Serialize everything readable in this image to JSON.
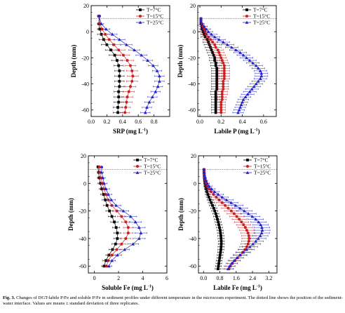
{
  "caption": {
    "label": "Fig. 3.",
    "text": "Changes of DGT-labile P/Fe and soluble P/Fe in sediment profiles under different temperature in the microcosm experiment. The dotted line shows the position of the sediment-water interface. Values are means ± standard deviation of three replicates."
  },
  "colors": {
    "t7": "#000000",
    "t15": "#cc1f1f",
    "t25": "#2222cc"
  },
  "chart_data": [
    {
      "type": "line",
      "xlabel": "SRP (mg L",
      "xlabel_sup": "-1",
      "xlabel_tail": ")",
      "ylabel": "Depth (mm)",
      "xlim": [
        0.0,
        1.0
      ],
      "xticks": [
        "0.0",
        "0.2",
        "0.4",
        "0.6",
        "0.8"
      ],
      "ylim": [
        -65,
        20
      ],
      "yticks": [
        "20",
        "0",
        "-20",
        "-40",
        "-60"
      ],
      "swi": 10,
      "legend": "top-right",
      "depth": [
        12,
        6,
        2,
        -2,
        -6,
        -10,
        -14,
        -18,
        -22,
        -26,
        -30,
        -34,
        -38,
        -42,
        -46,
        -50,
        -54,
        -58,
        -62
      ],
      "series": [
        {
          "name": "T=7°C",
          "marker": "square",
          "color": "t7",
          "values": [
            0.1,
            0.1,
            0.11,
            0.13,
            0.16,
            0.2,
            0.25,
            0.3,
            0.33,
            0.35,
            0.36,
            0.36,
            0.36,
            0.36,
            0.35,
            0.35,
            0.35,
            0.34,
            0.34
          ],
          "err": [
            0.02,
            0.02,
            0.03,
            0.05,
            0.06,
            0.07,
            0.07,
            0.07,
            0.07,
            0.06,
            0.06,
            0.06,
            0.06,
            0.06,
            0.06,
            0.06,
            0.06,
            0.06,
            0.06
          ]
        },
        {
          "name": "T=15°C",
          "marker": "circle",
          "color": "t15",
          "values": [
            0.1,
            0.11,
            0.14,
            0.18,
            0.23,
            0.29,
            0.35,
            0.41,
            0.46,
            0.5,
            0.52,
            0.53,
            0.52,
            0.5,
            0.48,
            0.46,
            0.45,
            0.44,
            0.43
          ],
          "err": [
            0.02,
            0.02,
            0.05,
            0.06,
            0.07,
            0.08,
            0.08,
            0.08,
            0.08,
            0.07,
            0.07,
            0.07,
            0.07,
            0.07,
            0.07,
            0.07,
            0.07,
            0.06,
            0.06
          ]
        },
        {
          "name": "T=25°C",
          "marker": "triangle",
          "color": "t25",
          "values": [
            0.1,
            0.13,
            0.19,
            0.27,
            0.36,
            0.45,
            0.55,
            0.64,
            0.72,
            0.79,
            0.84,
            0.87,
            0.87,
            0.85,
            0.82,
            0.78,
            0.74,
            0.71,
            0.69
          ],
          "err": [
            0.02,
            0.03,
            0.05,
            0.06,
            0.07,
            0.07,
            0.07,
            0.07,
            0.06,
            0.06,
            0.06,
            0.06,
            0.06,
            0.06,
            0.06,
            0.06,
            0.06,
            0.06,
            0.06
          ]
        }
      ]
    },
    {
      "type": "line",
      "xlabel": "Labile P (mg L",
      "xlabel_sup": "-1",
      "xlabel_tail": ")",
      "ylabel": "Depth (mm)",
      "xlim": [
        -0.02,
        0.72
      ],
      "xticks": [
        "0.0",
        "0.2",
        "0.4",
        "0.6"
      ],
      "ylim": [
        -65,
        20
      ],
      "yticks": [
        "20",
        "0",
        "-20",
        "-40",
        "-60"
      ],
      "swi": 10,
      "legend": "top-right",
      "depth": [
        10,
        8,
        6,
        4,
        2,
        0,
        -2,
        -4,
        -6,
        -8,
        -10,
        -12,
        -14,
        -16,
        -18,
        -20,
        -22,
        -24,
        -26,
        -28,
        -30,
        -32,
        -34,
        -36,
        -38,
        -40,
        -42,
        -44,
        -46,
        -48,
        -50,
        -52,
        -54,
        -56,
        -58,
        -60,
        -62
      ],
      "series": [
        {
          "name": "T=7°C",
          "marker": "square",
          "color": "t7",
          "values": [
            0.01,
            0.01,
            0.01,
            0.02,
            0.02,
            0.03,
            0.04,
            0.05,
            0.07,
            0.08,
            0.09,
            0.1,
            0.11,
            0.12,
            0.13,
            0.14,
            0.14,
            0.15,
            0.15,
            0.16,
            0.16,
            0.16,
            0.16,
            0.16,
            0.16,
            0.16,
            0.16,
            0.16,
            0.15,
            0.15,
            0.15,
            0.15,
            0.15,
            0.15,
            0.15,
            0.15,
            0.15
          ],
          "err": [
            0.01,
            0.01,
            0.01,
            0.02,
            0.02,
            0.03,
            0.03,
            0.04,
            0.04,
            0.05,
            0.05,
            0.05,
            0.05,
            0.05,
            0.05,
            0.05,
            0.05,
            0.05,
            0.05,
            0.05,
            0.05,
            0.05,
            0.05,
            0.05,
            0.05,
            0.05,
            0.05,
            0.05,
            0.05,
            0.05,
            0.04,
            0.04,
            0.04,
            0.04,
            0.04,
            0.04,
            0.04
          ]
        },
        {
          "name": "T=15°C",
          "marker": "circle",
          "color": "t15",
          "values": [
            0.01,
            0.01,
            0.02,
            0.03,
            0.04,
            0.05,
            0.06,
            0.08,
            0.1,
            0.12,
            0.14,
            0.15,
            0.17,
            0.18,
            0.19,
            0.2,
            0.21,
            0.22,
            0.23,
            0.23,
            0.23,
            0.23,
            0.23,
            0.23,
            0.22,
            0.22,
            0.22,
            0.22,
            0.21,
            0.21,
            0.21,
            0.21,
            0.2,
            0.2,
            0.2,
            0.2,
            0.2
          ],
          "err": [
            0.01,
            0.01,
            0.02,
            0.02,
            0.03,
            0.03,
            0.04,
            0.04,
            0.05,
            0.05,
            0.05,
            0.05,
            0.05,
            0.05,
            0.05,
            0.05,
            0.05,
            0.05,
            0.05,
            0.05,
            0.05,
            0.05,
            0.05,
            0.05,
            0.05,
            0.05,
            0.05,
            0.05,
            0.05,
            0.05,
            0.04,
            0.04,
            0.04,
            0.04,
            0.04,
            0.04,
            0.04
          ]
        },
        {
          "name": "T=25°C",
          "marker": "triangle",
          "color": "t25",
          "values": [
            0.01,
            0.01,
            0.02,
            0.04,
            0.06,
            0.08,
            0.11,
            0.14,
            0.18,
            0.22,
            0.26,
            0.3,
            0.34,
            0.38,
            0.41,
            0.44,
            0.47,
            0.5,
            0.53,
            0.55,
            0.57,
            0.58,
            0.58,
            0.57,
            0.55,
            0.53,
            0.51,
            0.49,
            0.47,
            0.45,
            0.43,
            0.41,
            0.4,
            0.39,
            0.38,
            0.37,
            0.36
          ],
          "err": [
            0.01,
            0.01,
            0.02,
            0.03,
            0.04,
            0.04,
            0.05,
            0.05,
            0.06,
            0.06,
            0.06,
            0.06,
            0.06,
            0.06,
            0.06,
            0.06,
            0.06,
            0.06,
            0.06,
            0.06,
            0.06,
            0.06,
            0.06,
            0.06,
            0.06,
            0.06,
            0.06,
            0.06,
            0.06,
            0.06,
            0.05,
            0.05,
            0.05,
            0.05,
            0.05,
            0.05,
            0.05
          ]
        }
      ]
    },
    {
      "type": "line",
      "xlabel": "Soluble Fe (mg L",
      "xlabel_sup": "-1",
      "xlabel_tail": ")",
      "ylabel": "Depth (mm)",
      "xlim": [
        -0.5,
        6.0
      ],
      "xticks": [
        "0",
        "2",
        "4",
        "6"
      ],
      "ylim": [
        -65,
        20
      ],
      "yticks": [
        "20",
        "0",
        "-20",
        "-40",
        "-60"
      ],
      "swi": 10,
      "legend": "top-right",
      "depth": [
        12,
        8,
        4,
        0,
        -4,
        -8,
        -12,
        -16,
        -20,
        -24,
        -28,
        -32,
        -36,
        -40,
        -44,
        -48,
        -52,
        -56,
        -60
      ],
      "series": [
        {
          "name": "T=7°C",
          "marker": "square",
          "color": "t7",
          "values": [
            0.3,
            0.35,
            0.4,
            0.5,
            0.6,
            0.75,
            0.9,
            1.05,
            1.25,
            1.45,
            1.65,
            1.8,
            1.9,
            1.9,
            1.75,
            1.5,
            1.2,
            0.95,
            0.8
          ],
          "err": [
            0.1,
            0.1,
            0.15,
            0.2,
            0.2,
            0.25,
            0.25,
            0.3,
            0.3,
            0.3,
            0.3,
            0.3,
            0.3,
            0.3,
            0.3,
            0.3,
            0.25,
            0.25,
            0.2
          ]
        },
        {
          "name": "T=15°C",
          "marker": "circle",
          "color": "t15",
          "values": [
            0.4,
            0.45,
            0.55,
            0.65,
            0.8,
            0.95,
            1.15,
            1.45,
            1.85,
            2.25,
            2.6,
            2.8,
            2.8,
            2.6,
            2.25,
            1.85,
            1.45,
            1.15,
            1.0
          ],
          "err": [
            0.1,
            0.15,
            0.2,
            0.2,
            0.25,
            0.25,
            0.3,
            0.3,
            0.35,
            0.35,
            0.35,
            0.4,
            0.4,
            0.4,
            0.35,
            0.35,
            0.3,
            0.3,
            0.25
          ]
        },
        {
          "name": "T=25°C",
          "marker": "triangle",
          "color": "t25",
          "values": [
            0.6,
            0.6,
            0.7,
            0.8,
            0.95,
            1.15,
            1.4,
            1.8,
            2.4,
            3.0,
            3.4,
            3.7,
            3.85,
            3.7,
            3.2,
            2.5,
            1.9,
            1.45,
            1.2
          ],
          "err": [
            0.1,
            0.15,
            0.2,
            0.25,
            0.3,
            0.3,
            0.35,
            0.4,
            0.45,
            0.5,
            0.5,
            0.5,
            0.5,
            0.5,
            0.45,
            0.4,
            0.35,
            0.3,
            0.25
          ]
        }
      ]
    },
    {
      "type": "line",
      "xlabel": "Labile Fe (mg L",
      "xlabel_sup": "-1",
      "xlabel_tail": ")",
      "ylabel": "Depth (mm)",
      "xlim": [
        -0.25,
        3.6
      ],
      "xticks": [
        "0.0",
        "0.8",
        "1.6",
        "2.4",
        "3.2"
      ],
      "ylim": [
        -65,
        20
      ],
      "yticks": [
        "20",
        "0",
        "-20",
        "-40",
        "-60"
      ],
      "swi": 10,
      "legend": "top-right",
      "depth": [
        10,
        8,
        6,
        4,
        2,
        0,
        -2,
        -4,
        -6,
        -8,
        -10,
        -12,
        -14,
        -16,
        -18,
        -20,
        -22,
        -24,
        -26,
        -28,
        -30,
        -32,
        -34,
        -36,
        -38,
        -40,
        -42,
        -44,
        -46,
        -48,
        -50,
        -52,
        -54,
        -56,
        -58,
        -60,
        -62
      ],
      "series": [
        {
          "name": "T=7°C",
          "marker": "square",
          "color": "t7",
          "values": [
            0.02,
            0.02,
            0.03,
            0.04,
            0.05,
            0.07,
            0.1,
            0.13,
            0.17,
            0.21,
            0.26,
            0.32,
            0.38,
            0.44,
            0.5,
            0.55,
            0.6,
            0.64,
            0.68,
            0.72,
            0.75,
            0.78,
            0.81,
            0.83,
            0.85,
            0.86,
            0.87,
            0.87,
            0.86,
            0.85,
            0.83,
            0.81,
            0.79,
            0.77,
            0.75,
            0.73,
            0.71
          ],
          "err": [
            0.02,
            0.02,
            0.03,
            0.04,
            0.05,
            0.06,
            0.08,
            0.09,
            0.1,
            0.12,
            0.13,
            0.14,
            0.15,
            0.15,
            0.15,
            0.15,
            0.15,
            0.15,
            0.15,
            0.15,
            0.15,
            0.15,
            0.15,
            0.15,
            0.15,
            0.15,
            0.15,
            0.15,
            0.15,
            0.15,
            0.14,
            0.14,
            0.14,
            0.14,
            0.14,
            0.14,
            0.14
          ]
        },
        {
          "name": "T=15°C",
          "marker": "circle",
          "color": "t15",
          "values": [
            0.03,
            0.03,
            0.04,
            0.06,
            0.09,
            0.13,
            0.19,
            0.27,
            0.37,
            0.49,
            0.62,
            0.76,
            0.91,
            1.06,
            1.21,
            1.36,
            1.5,
            1.63,
            1.75,
            1.86,
            1.96,
            2.05,
            2.12,
            2.18,
            2.22,
            2.23,
            2.22,
            2.18,
            2.12,
            2.03,
            1.92,
            1.8,
            1.67,
            1.54,
            1.42,
            1.32,
            1.25
          ],
          "err": [
            0.02,
            0.02,
            0.03,
            0.05,
            0.07,
            0.09,
            0.12,
            0.15,
            0.18,
            0.21,
            0.24,
            0.27,
            0.3,
            0.32,
            0.33,
            0.34,
            0.35,
            0.35,
            0.35,
            0.35,
            0.35,
            0.35,
            0.35,
            0.35,
            0.35,
            0.35,
            0.35,
            0.35,
            0.35,
            0.35,
            0.33,
            0.31,
            0.29,
            0.27,
            0.25,
            0.23,
            0.22
          ]
        },
        {
          "name": "T=25°C",
          "marker": "triangle",
          "color": "t25",
          "values": [
            0.03,
            0.04,
            0.05,
            0.08,
            0.12,
            0.18,
            0.27,
            0.39,
            0.54,
            0.72,
            0.92,
            1.13,
            1.35,
            1.57,
            1.79,
            2.0,
            2.2,
            2.39,
            2.56,
            2.7,
            2.8,
            2.86,
            2.88,
            2.85,
            2.78,
            2.68,
            2.56,
            2.42,
            2.27,
            2.11,
            1.95,
            1.79,
            1.64,
            1.5,
            1.38,
            1.28,
            1.2
          ],
          "err": [
            0.02,
            0.03,
            0.04,
            0.06,
            0.08,
            0.11,
            0.14,
            0.18,
            0.22,
            0.26,
            0.29,
            0.32,
            0.34,
            0.36,
            0.37,
            0.38,
            0.38,
            0.38,
            0.38,
            0.38,
            0.38,
            0.38,
            0.38,
            0.38,
            0.38,
            0.38,
            0.38,
            0.38,
            0.38,
            0.38,
            0.36,
            0.34,
            0.32,
            0.3,
            0.28,
            0.26,
            0.25
          ]
        }
      ]
    }
  ]
}
